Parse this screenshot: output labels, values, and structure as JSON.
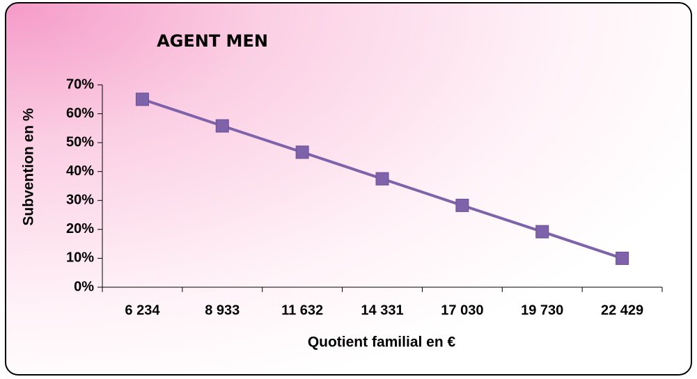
{
  "chart_data": {
    "type": "line",
    "title": "AGENT MEN",
    "x_label": "Quotient familial en €",
    "y_label": "Subvention en %",
    "categories": [
      "6 234",
      "8 933",
      "11 632",
      "14 331",
      "17 030",
      "19 730",
      "22 429"
    ],
    "values": [
      65,
      55.8,
      46.7,
      37.5,
      28.3,
      19.2,
      10
    ],
    "color": "#7e62aa",
    "ylim": [
      0,
      70
    ],
    "yticks": [
      {
        "value": 0,
        "label": "0%"
      },
      {
        "value": 10,
        "label": "10%"
      },
      {
        "value": 20,
        "label": "20%"
      },
      {
        "value": 30,
        "label": "30%"
      },
      {
        "value": 40,
        "label": "40%"
      },
      {
        "value": 50,
        "label": "50%"
      },
      {
        "value": 60,
        "label": "60%"
      },
      {
        "value": 70,
        "label": "70%"
      }
    ]
  }
}
